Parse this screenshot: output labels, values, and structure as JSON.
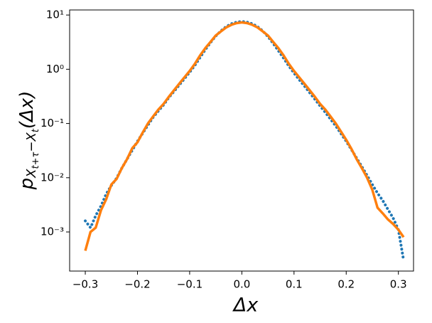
{
  "chart_data": {
    "type": "line",
    "yscale": "log",
    "xlabel": "Δx",
    "ylabel": [
      "p",
      "X",
      "t+τ",
      "−X",
      "t",
      "(Δx)"
    ],
    "x": [
      -0.3,
      -0.29,
      -0.28,
      -0.27,
      -0.26,
      -0.25,
      -0.24,
      -0.23,
      -0.22,
      -0.21,
      -0.2,
      -0.19,
      -0.18,
      -0.17,
      -0.16,
      -0.15,
      -0.14,
      -0.13,
      -0.12,
      -0.11,
      -0.1,
      -0.09,
      -0.08,
      -0.07,
      -0.06,
      -0.05,
      -0.04,
      -0.03,
      -0.02,
      -0.01,
      0.0,
      0.01,
      0.02,
      0.03,
      0.04,
      0.05,
      0.06,
      0.07,
      0.08,
      0.09,
      0.1,
      0.11,
      0.12,
      0.13,
      0.14,
      0.15,
      0.16,
      0.17,
      0.18,
      0.19,
      0.2,
      0.21,
      0.22,
      0.23,
      0.24,
      0.25,
      0.26,
      0.27,
      0.28,
      0.29,
      0.3,
      0.31
    ],
    "series": [
      {
        "color": "#1f77b4",
        "style": "dotted",
        "values": [
          0.0016,
          0.0012,
          0.002,
          0.003,
          0.005,
          0.0072,
          0.0098,
          0.015,
          0.022,
          0.032,
          0.047,
          0.066,
          0.093,
          0.13,
          0.17,
          0.22,
          0.3,
          0.39,
          0.51,
          0.67,
          0.88,
          1.18,
          1.65,
          2.3,
          3.1,
          4.1,
          5.1,
          6.1,
          6.9,
          7.4,
          7.6,
          7.4,
          6.9,
          6.1,
          5.1,
          4.0,
          3.0,
          2.2,
          1.6,
          1.15,
          0.85,
          0.64,
          0.49,
          0.37,
          0.28,
          0.21,
          0.16,
          0.12,
          0.09,
          0.065,
          0.047,
          0.033,
          0.023,
          0.016,
          0.011,
          0.0075,
          0.0052,
          0.0038,
          0.0026,
          0.0018,
          0.0011,
          0.0003
        ]
      },
      {
        "color": "#ff7f0e",
        "style": "solid",
        "values": [
          0.00045,
          0.001,
          0.0012,
          0.0025,
          0.004,
          0.0075,
          0.0095,
          0.015,
          0.022,
          0.035,
          0.045,
          0.068,
          0.1,
          0.135,
          0.18,
          0.23,
          0.31,
          0.41,
          0.54,
          0.71,
          0.93,
          1.26,
          1.8,
          2.45,
          3.2,
          4.2,
          5.0,
          5.9,
          6.6,
          7.1,
          7.3,
          7.1,
          6.6,
          5.9,
          5.0,
          4.2,
          3.2,
          2.45,
          1.8,
          1.26,
          0.93,
          0.71,
          0.54,
          0.41,
          0.31,
          0.23,
          0.18,
          0.135,
          0.1,
          0.071,
          0.05,
          0.034,
          0.022,
          0.015,
          0.01,
          0.006,
          0.0028,
          0.0022,
          0.0017,
          0.0014,
          0.0011,
          0.0008
        ]
      }
    ],
    "xlim": [
      -0.33,
      0.329
    ],
    "xticks": [
      {
        "value": -0.3,
        "label": "−0.3"
      },
      {
        "value": -0.2,
        "label": "−0.2"
      },
      {
        "value": -0.1,
        "label": "−0.1"
      },
      {
        "value": 0,
        "label": "0.0"
      },
      0.1,
      0.2,
      0.3
    ],
    "ylim": [
      0.00019,
      12.4
    ],
    "yticks": [
      {
        "value": 10,
        "label": "10¹"
      },
      {
        "value": 1,
        "label": "10⁰"
      },
      {
        "value": 0.1,
        "label": "10⁻¹"
      },
      {
        "value": 0.01,
        "label": "10⁻²"
      },
      {
        "value": 0.001,
        "label": "10⁻³"
      }
    ]
  }
}
